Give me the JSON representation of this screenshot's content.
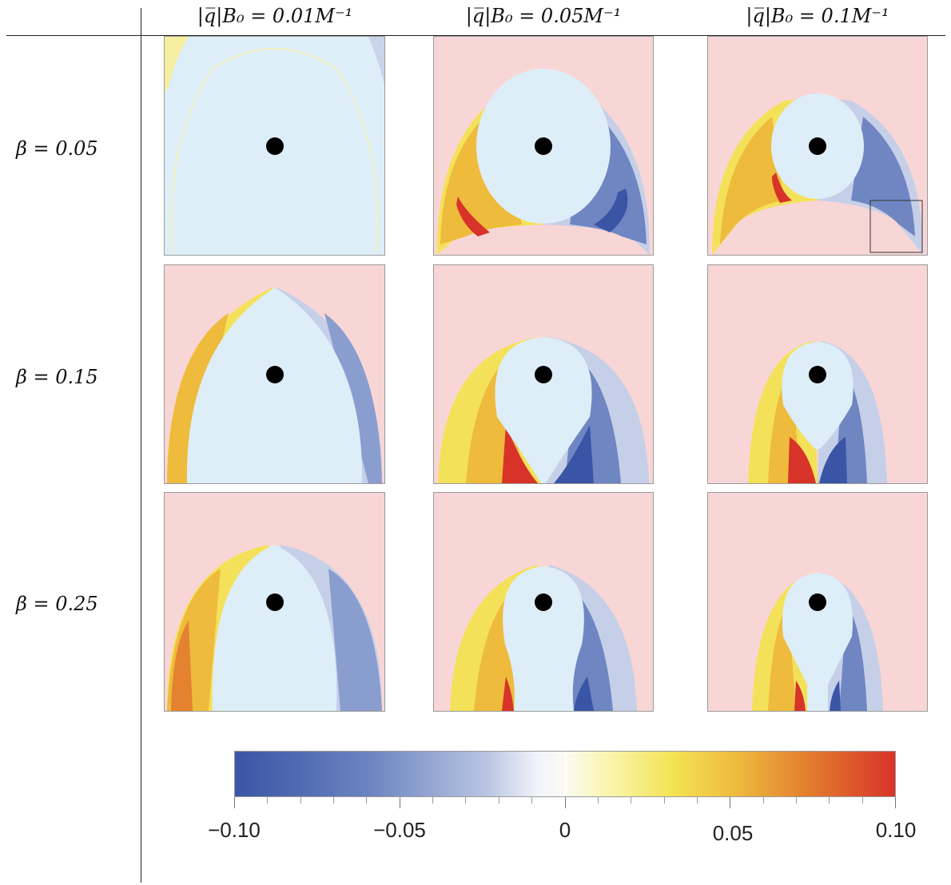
{
  "columns": [
    {
      "label": "|q̅|B₀ = 0.01M⁻¹"
    },
    {
      "label": "|q̅|B₀ = 0.05M⁻¹"
    },
    {
      "label": "|q̅|B₀ = 0.1M⁻¹"
    }
  ],
  "rows": [
    {
      "label": "β = 0.05"
    },
    {
      "label": "β = 0.15"
    },
    {
      "label": "β = 0.25"
    }
  ],
  "colorbar": {
    "min": -0.1,
    "max": 0.1,
    "tick_labels": [
      "−0.10",
      "−0.05",
      "0",
      "0.05",
      "0.10"
    ],
    "colors": {
      "negative": "#3a55a5",
      "neutral": "#f8f8f0",
      "positive": "#d73328",
      "escape": "#f8d6d6",
      "captured": "#ddeef8",
      "horizon": "#000000"
    }
  }
}
